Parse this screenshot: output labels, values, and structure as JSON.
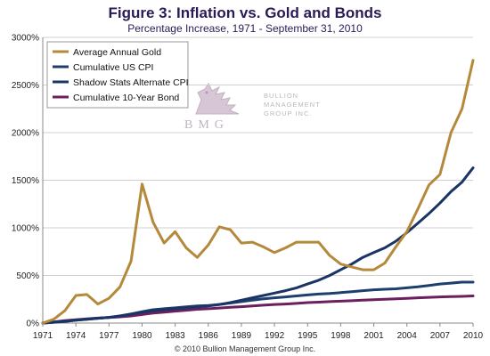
{
  "colors": {
    "gold": "#b5893c",
    "cpi": "#1c3f6e",
    "shadow": "#1a3466",
    "bond": "#6b1f5f",
    "grid": "#d0d0d0",
    "title": "#2a1a56"
  },
  "watermark": {
    "line1": "BULLION",
    "line2": "MANAGEMENT",
    "line3": "GROUP INC.",
    "monogram": "BMG",
    "logo_icon": "griffin-logo-icon"
  },
  "footer": "© 2010  Bullion Management Group Inc.",
  "chart_data": {
    "type": "line",
    "title": "Figure 3: Inflation vs. Gold and Bonds",
    "subtitle": "Percentage Increase, 1971 - September 31, 2010",
    "xlabel": "",
    "ylabel": "",
    "xlim": [
      1971,
      2010
    ],
    "ylim": [
      0,
      3000
    ],
    "x_ticks": [
      1971,
      1974,
      1977,
      1980,
      1983,
      1986,
      1989,
      1992,
      1995,
      1998,
      2001,
      2004,
      2007,
      2010
    ],
    "y_ticks": [
      0,
      500,
      1000,
      1500,
      2000,
      2500,
      3000
    ],
    "y_tick_labels": [
      "0%",
      "500%",
      "1000%",
      "1500%",
      "2000%",
      "2500%",
      "3000%"
    ],
    "grid": true,
    "legend_position": "top-left",
    "x": [
      1971,
      1972,
      1973,
      1974,
      1975,
      1976,
      1977,
      1978,
      1979,
      1980,
      1981,
      1982,
      1983,
      1984,
      1985,
      1986,
      1987,
      1988,
      1989,
      1990,
      1991,
      1992,
      1993,
      1994,
      1995,
      1996,
      1997,
      1998,
      1999,
      2000,
      2001,
      2002,
      2003,
      2004,
      2005,
      2006,
      2007,
      2008,
      2009,
      2010
    ],
    "series": [
      {
        "name": "Average Annual Gold",
        "color_key": "gold",
        "values": [
          0,
          40,
          130,
          290,
          300,
          200,
          260,
          380,
          650,
          1460,
          1060,
          840,
          960,
          790,
          690,
          820,
          1010,
          980,
          840,
          850,
          800,
          740,
          790,
          850,
          850,
          850,
          710,
          620,
          590,
          560,
          560,
          630,
          800,
          960,
          1200,
          1450,
          1560,
          2000,
          2250,
          2760
        ]
      },
      {
        "name": "Cumulative US CPI",
        "color_key": "cpi",
        "values": [
          0,
          8,
          18,
          30,
          40,
          50,
          60,
          75,
          95,
          120,
          140,
          150,
          160,
          170,
          180,
          185,
          195,
          210,
          225,
          240,
          255,
          265,
          275,
          285,
          295,
          305,
          310,
          320,
          330,
          340,
          350,
          355,
          360,
          370,
          380,
          395,
          410,
          420,
          430,
          430
        ]
      },
      {
        "name": "Shadow Stats Alternate CPI",
        "color_key": "shadow",
        "values": [
          0,
          8,
          18,
          30,
          40,
          50,
          60,
          75,
          95,
          115,
          130,
          140,
          150,
          160,
          170,
          180,
          195,
          215,
          240,
          265,
          290,
          315,
          340,
          370,
          410,
          450,
          500,
          560,
          620,
          690,
          740,
          790,
          860,
          950,
          1050,
          1150,
          1260,
          1380,
          1480,
          1630
        ]
      },
      {
        "name": "Cumulative 10-Year Bond",
        "color_key": "bond",
        "values": [
          0,
          12,
          25,
          35,
          45,
          52,
          58,
          65,
          75,
          90,
          105,
          115,
          125,
          135,
          145,
          150,
          158,
          165,
          172,
          180,
          188,
          195,
          200,
          207,
          215,
          220,
          225,
          230,
          235,
          240,
          245,
          250,
          255,
          260,
          265,
          270,
          275,
          278,
          280,
          285
        ]
      }
    ]
  }
}
